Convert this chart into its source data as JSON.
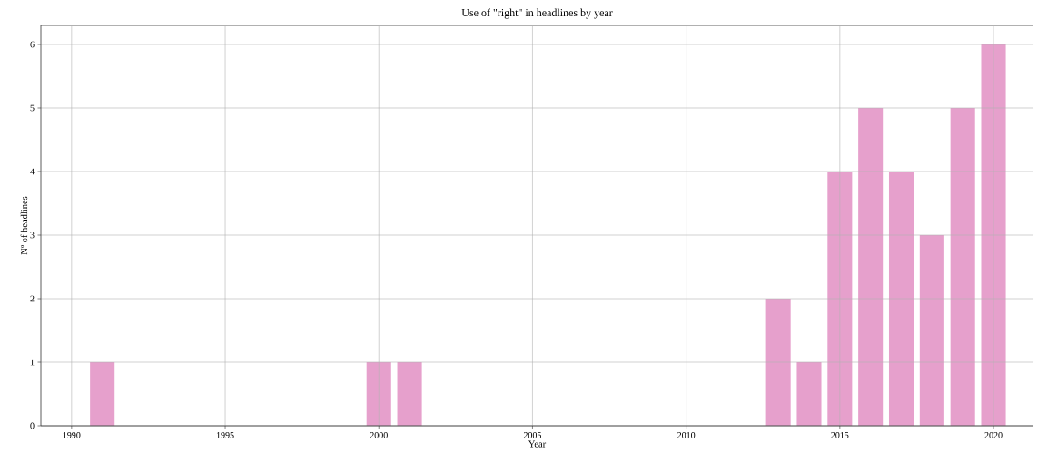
{
  "chart_data": {
    "type": "bar",
    "title": "Use of \"right\" in headlines by year",
    "xlabel": "Year",
    "ylabel": "Nº of headlines",
    "x": [
      1991,
      2000,
      2001,
      2013,
      2014,
      2015,
      2016,
      2017,
      2018,
      2019,
      2020
    ],
    "values": [
      1,
      1,
      1,
      2,
      1,
      4,
      5,
      4,
      3,
      5,
      6
    ],
    "color": "#e6a0cc",
    "xlim": [
      1989.0,
      2021.3
    ],
    "xticks": [
      1990,
      1995,
      2000,
      2005,
      2010,
      2015,
      2020
    ],
    "ylim": [
      0,
      6.3
    ],
    "yticks": [
      0,
      1,
      2,
      3,
      4,
      5,
      6
    ],
    "grid": true
  }
}
